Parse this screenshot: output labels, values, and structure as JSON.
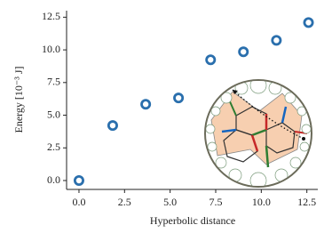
{
  "chart_data": {
    "type": "scatter",
    "xlabel": "Hyperbolic distance",
    "ylabel": "Energy [10⁻³ J]",
    "x": [
      0,
      1.85,
      3.66,
      5.46,
      7.22,
      9.02,
      10.83,
      12.59
    ],
    "values": [
      0,
      4.21,
      5.84,
      6.32,
      9.24,
      9.85,
      10.73,
      12.09
    ],
    "color": "#2a6fad",
    "xlim": [
      -0.68,
      13.1
    ],
    "ylim": [
      -0.68,
      13.0
    ],
    "xticks": [
      {
        "value": 0,
        "label": "0.0"
      },
      2.5,
      {
        "value": 5,
        "label": "5.0"
      },
      7.5,
      {
        "value": 10,
        "label": "10.0"
      },
      12.5
    ],
    "yticks": [
      {
        "value": 0,
        "label": "0.0"
      },
      2.5,
      {
        "value": 5,
        "label": "5.0"
      },
      7.5,
      {
        "value": 10,
        "label": "10.0"
      },
      12.5
    ]
  }
}
